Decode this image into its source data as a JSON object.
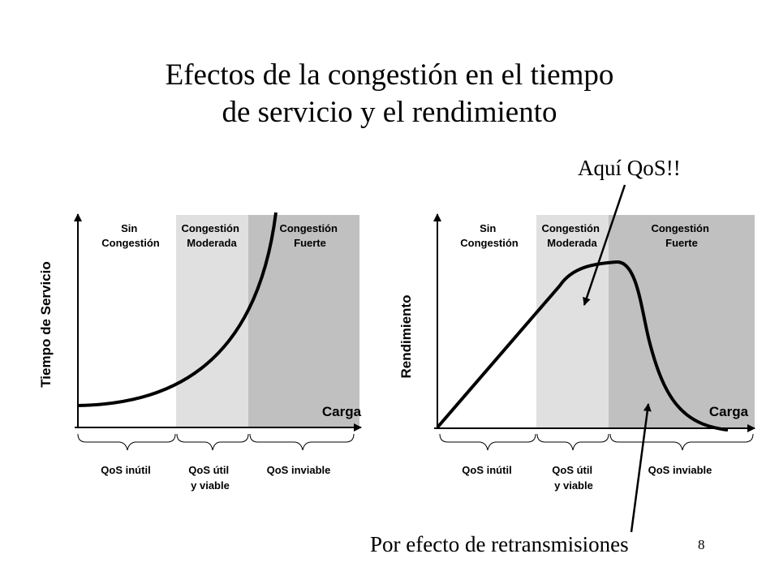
{
  "title": {
    "line1": "Efectos de la congestión en el tiempo",
    "line2": "de servicio y el rendimiento"
  },
  "colors": {
    "moderate_zone": "#e0e0e0",
    "heavy_zone": "#c0c0c0",
    "curve": "#000000"
  },
  "left_chart": {
    "ylabel": "Tiempo de Servicio",
    "xlabel": "Carga",
    "zones": [
      {
        "line1": "Sin",
        "line2": "Congestión"
      },
      {
        "line1": "Congestión",
        "line2": "Moderada"
      },
      {
        "line1": "Congestión",
        "line2": "Fuerte"
      }
    ],
    "qos": [
      {
        "line1": "QoS inútil",
        "line2": ""
      },
      {
        "line1": "QoS útil",
        "line2": "y viable"
      },
      {
        "line1": "QoS inviable",
        "line2": ""
      }
    ]
  },
  "right_chart": {
    "ylabel": "Rendimiento",
    "xlabel": "Carga",
    "zones": [
      {
        "line1": "Sin",
        "line2": "Congestión"
      },
      {
        "line1": "Congestión",
        "line2": "Moderada"
      },
      {
        "line1": "Congestión",
        "line2": "Fuerte"
      }
    ],
    "qos": [
      {
        "line1": "QoS inútil",
        "line2": ""
      },
      {
        "line1": "QoS útil",
        "line2": "y viable"
      },
      {
        "line1": "QoS inviable",
        "line2": ""
      }
    ]
  },
  "callouts": {
    "qos_here": "Aquí QoS!!",
    "retransmissions": "Por efecto de retransmisiones"
  },
  "page_number": "8"
}
